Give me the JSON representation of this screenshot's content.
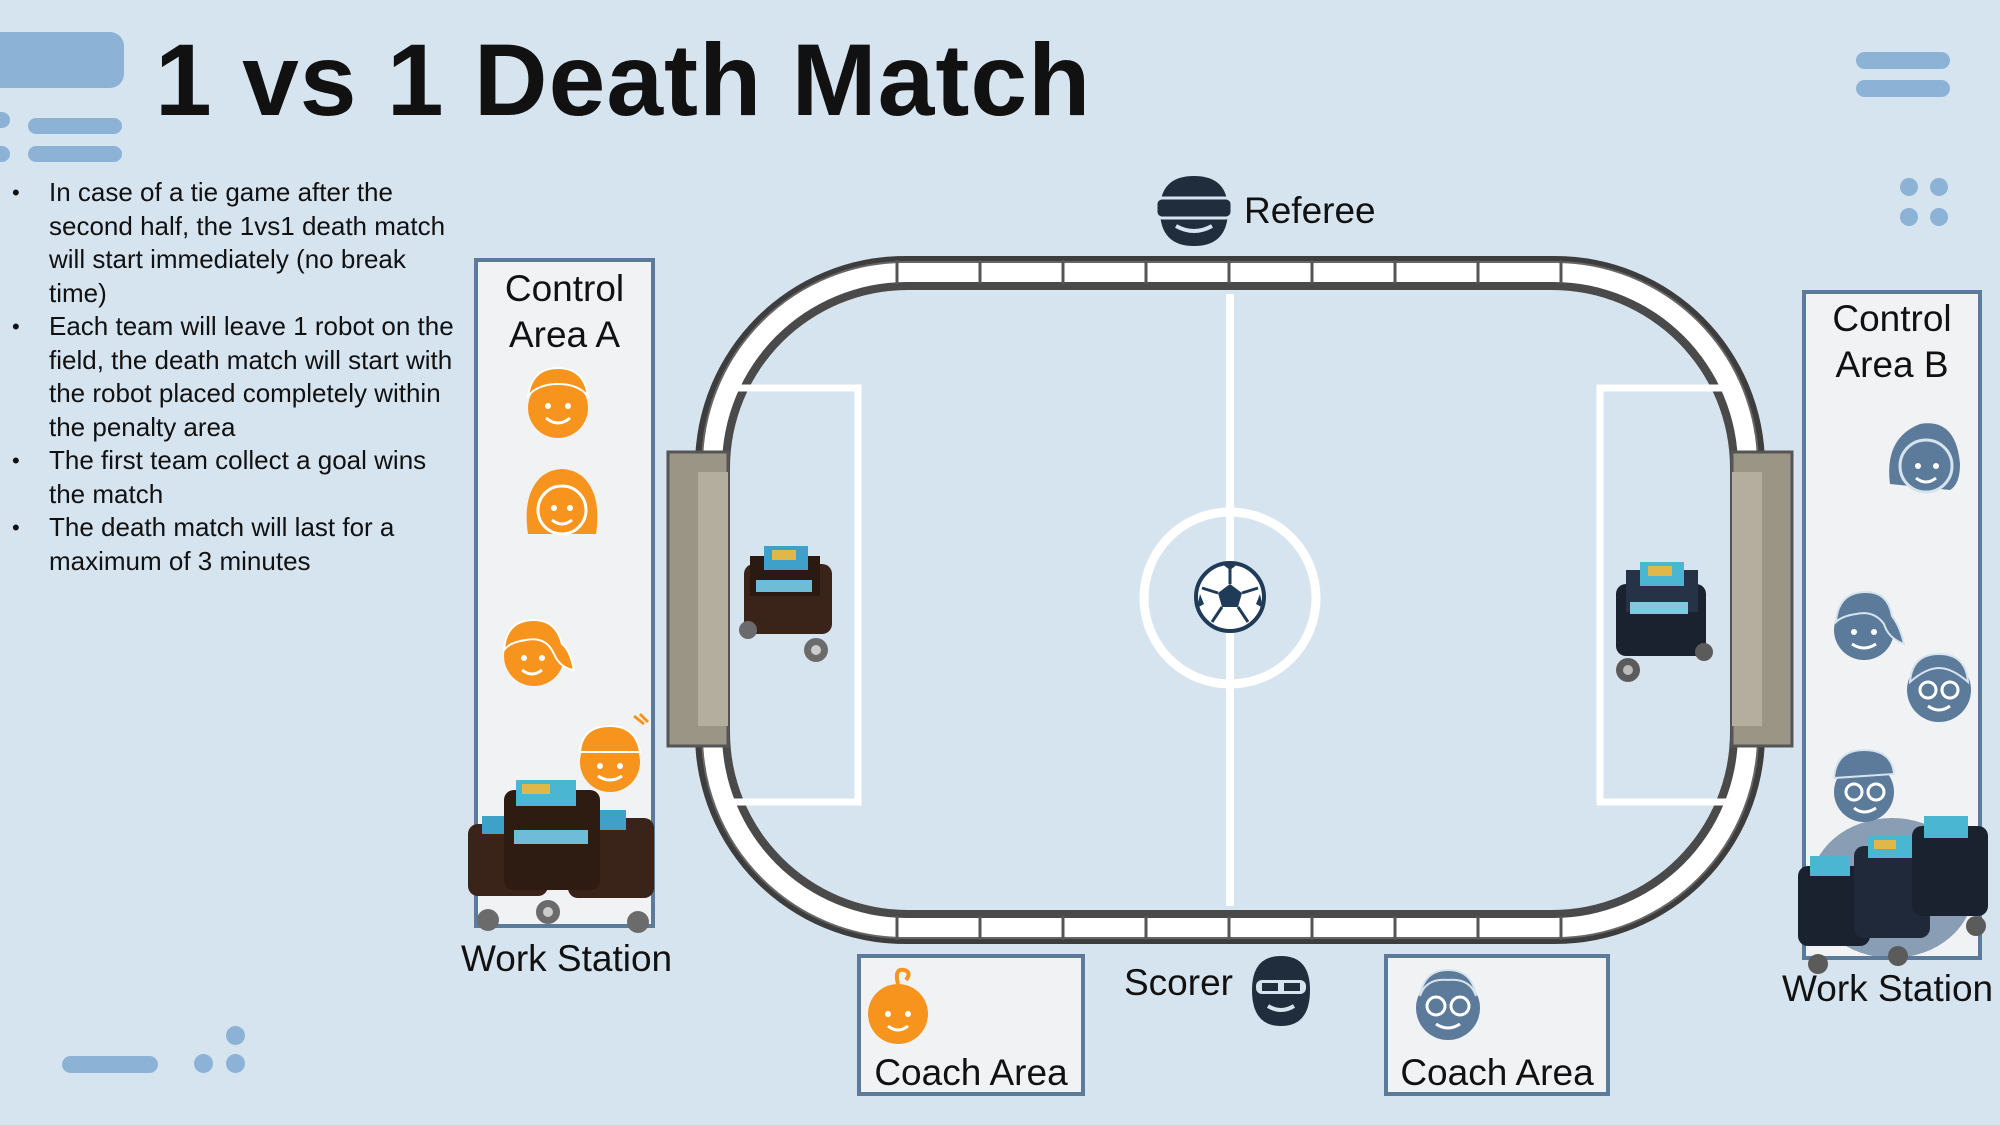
{
  "title": "1 vs 1 Death Match",
  "rules": [
    "In case of a tie game after the second half, the 1vs1 death match will start immediately (no break time)",
    "Each team will leave 1 robot on the field, the death match will start with the robot placed completely within the penalty area",
    "The first team collect a goal wins the match",
    "The death match will last for a maximum of 3 minutes"
  ],
  "referee_label": "Referee",
  "scorer_label": "Scorer",
  "control_area_a": {
    "label_line1": "Control",
    "label_line2": "Area A"
  },
  "control_area_b": {
    "label_line1": "Control",
    "label_line2": "Area B"
  },
  "work_station_a": "Work Station",
  "work_station_b": "Work Station",
  "coach_area_a": "Coach Area",
  "coach_area_b": "Coach Area",
  "colors": {
    "background": "#d6e4ef",
    "team_a": "#f7941d",
    "team_b": "#5c7a99",
    "official": "#1f2d3d",
    "accent": "#8cb3d6"
  },
  "icons": [
    "referee-icon",
    "scorer-icon",
    "soccer-ball-icon",
    "robot-icon",
    "person-icon"
  ]
}
